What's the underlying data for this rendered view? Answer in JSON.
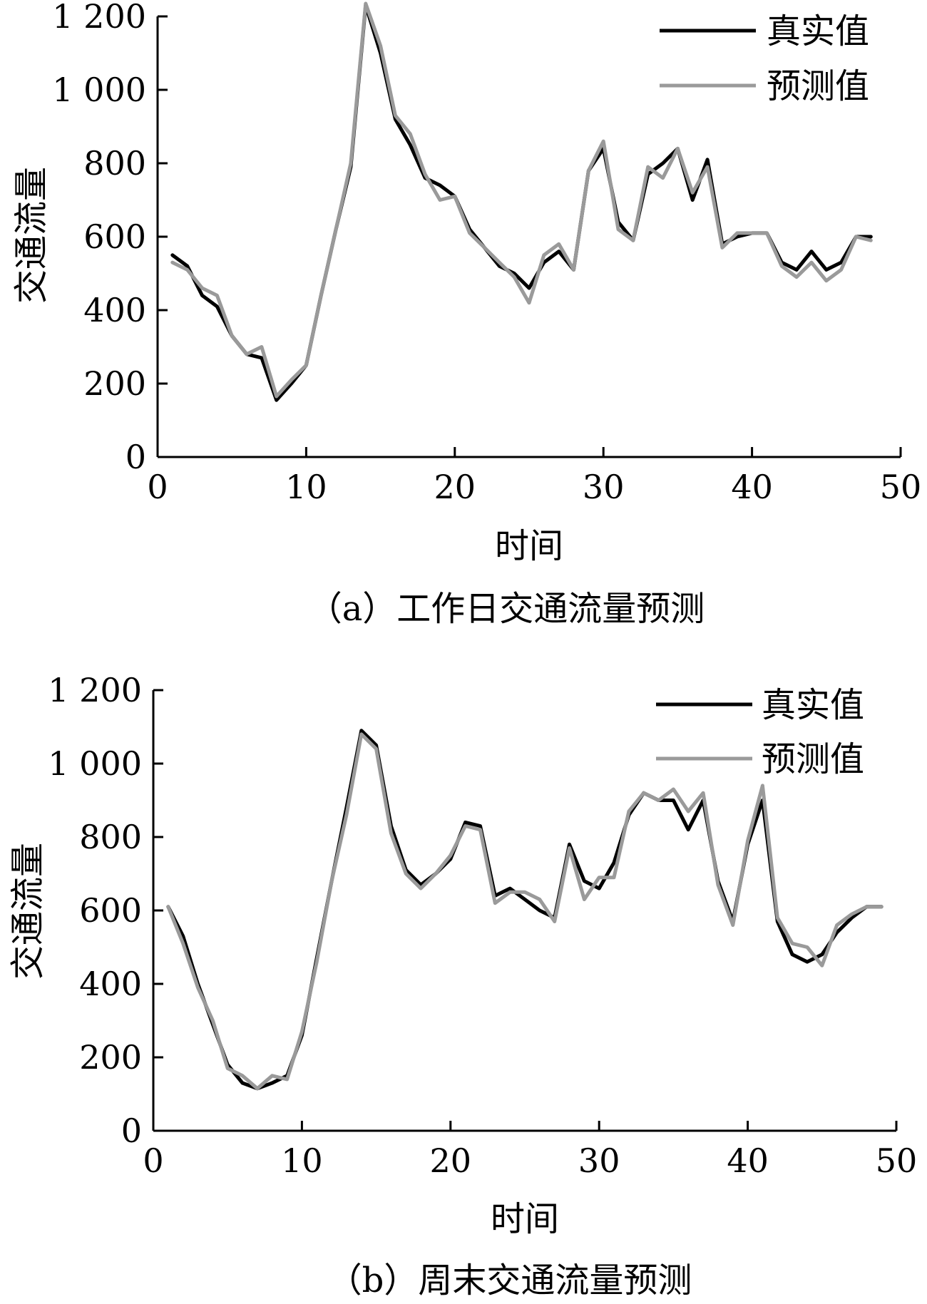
{
  "chart_data": [
    {
      "type": "line",
      "caption": "（a）工作日交通流量预测",
      "xlabel": "时间",
      "ylabel": "交通流量",
      "xlim": [
        0,
        50
      ],
      "ylim": [
        0,
        1200
      ],
      "xticks": [
        0,
        10,
        20,
        30,
        40,
        50
      ],
      "yticks": [
        0,
        200,
        400,
        600,
        800,
        1000,
        1200
      ],
      "xtick_labels": [
        "0",
        "10",
        "20",
        "30",
        "40",
        "50"
      ],
      "ytick_labels": [
        "0",
        "200",
        "400",
        "600",
        "800",
        "1 000",
        "1 200"
      ],
      "grid": false,
      "legend_position": "top-right",
      "x": [
        1,
        2,
        3,
        4,
        5,
        6,
        7,
        8,
        9,
        10,
        11,
        12,
        13,
        14,
        15,
        16,
        17,
        18,
        19,
        20,
        21,
        22,
        23,
        24,
        25,
        26,
        27,
        28,
        29,
        30,
        31,
        32,
        33,
        34,
        35,
        36,
        37,
        38,
        39,
        40,
        41,
        42,
        43,
        44,
        45,
        46,
        47,
        48
      ],
      "series": [
        {
          "name": "真实值",
          "color": "#000000",
          "values": [
            550,
            520,
            440,
            410,
            330,
            280,
            270,
            155,
            200,
            250,
            440,
            620,
            790,
            1230,
            1100,
            920,
            850,
            760,
            740,
            710,
            620,
            570,
            520,
            500,
            460,
            530,
            560,
            510,
            780,
            840,
            640,
            590,
            770,
            800,
            840,
            700,
            810,
            580,
            600,
            610,
            610,
            530,
            510,
            560,
            510,
            530,
            600,
            600
          ]
        },
        {
          "name": "预测值",
          "color": "#9a9a9a",
          "values": [
            530,
            510,
            460,
            440,
            330,
            280,
            300,
            165,
            210,
            250,
            440,
            620,
            800,
            1235,
            1120,
            930,
            880,
            770,
            700,
            710,
            610,
            570,
            530,
            490,
            420,
            550,
            580,
            510,
            780,
            860,
            620,
            590,
            790,
            760,
            840,
            720,
            790,
            570,
            610,
            610,
            610,
            520,
            490,
            530,
            480,
            510,
            600,
            590
          ]
        }
      ]
    },
    {
      "type": "line",
      "caption": "（b）周末交通流量预测",
      "xlabel": "时间",
      "ylabel": "交通流量",
      "xlim": [
        0,
        50
      ],
      "ylim": [
        0,
        1200
      ],
      "xticks": [
        0,
        10,
        20,
        30,
        40,
        50
      ],
      "yticks": [
        0,
        200,
        400,
        600,
        800,
        1000,
        1200
      ],
      "xtick_labels": [
        "0",
        "10",
        "20",
        "30",
        "40",
        "50"
      ],
      "ytick_labels": [
        "0",
        "200",
        "400",
        "600",
        "800",
        "1 000",
        "1 200"
      ],
      "grid": false,
      "legend_position": "top-right",
      "x": [
        1,
        2,
        3,
        4,
        5,
        6,
        7,
        8,
        9,
        10,
        11,
        12,
        13,
        14,
        15,
        16,
        17,
        18,
        19,
        20,
        21,
        22,
        23,
        24,
        25,
        26,
        27,
        28,
        29,
        30,
        31,
        32,
        33,
        34,
        35,
        36,
        37,
        38,
        39,
        40,
        41,
        42,
        43,
        44,
        45,
        46,
        47,
        48,
        49
      ],
      "series": [
        {
          "name": "真实值",
          "color": "#000000",
          "values": [
            610,
            530,
            400,
            290,
            180,
            130,
            115,
            130,
            150,
            260,
            470,
            680,
            880,
            1090,
            1050,
            830,
            710,
            670,
            700,
            740,
            840,
            830,
            640,
            660,
            630,
            600,
            580,
            780,
            680,
            660,
            730,
            860,
            920,
            900,
            900,
            820,
            900,
            680,
            570,
            780,
            900,
            570,
            480,
            460,
            480,
            540,
            580,
            610,
            610
          ]
        },
        {
          "name": "预测值",
          "color": "#9a9a9a",
          "values": [
            610,
            510,
            390,
            300,
            170,
            150,
            115,
            150,
            140,
            270,
            460,
            680,
            860,
            1080,
            1040,
            810,
            700,
            660,
            700,
            750,
            830,
            820,
            620,
            650,
            650,
            630,
            570,
            770,
            630,
            690,
            690,
            870,
            920,
            900,
            930,
            870,
            920,
            670,
            560,
            790,
            940,
            580,
            510,
            500,
            450,
            560,
            590,
            610,
            610
          ]
        }
      ]
    }
  ]
}
